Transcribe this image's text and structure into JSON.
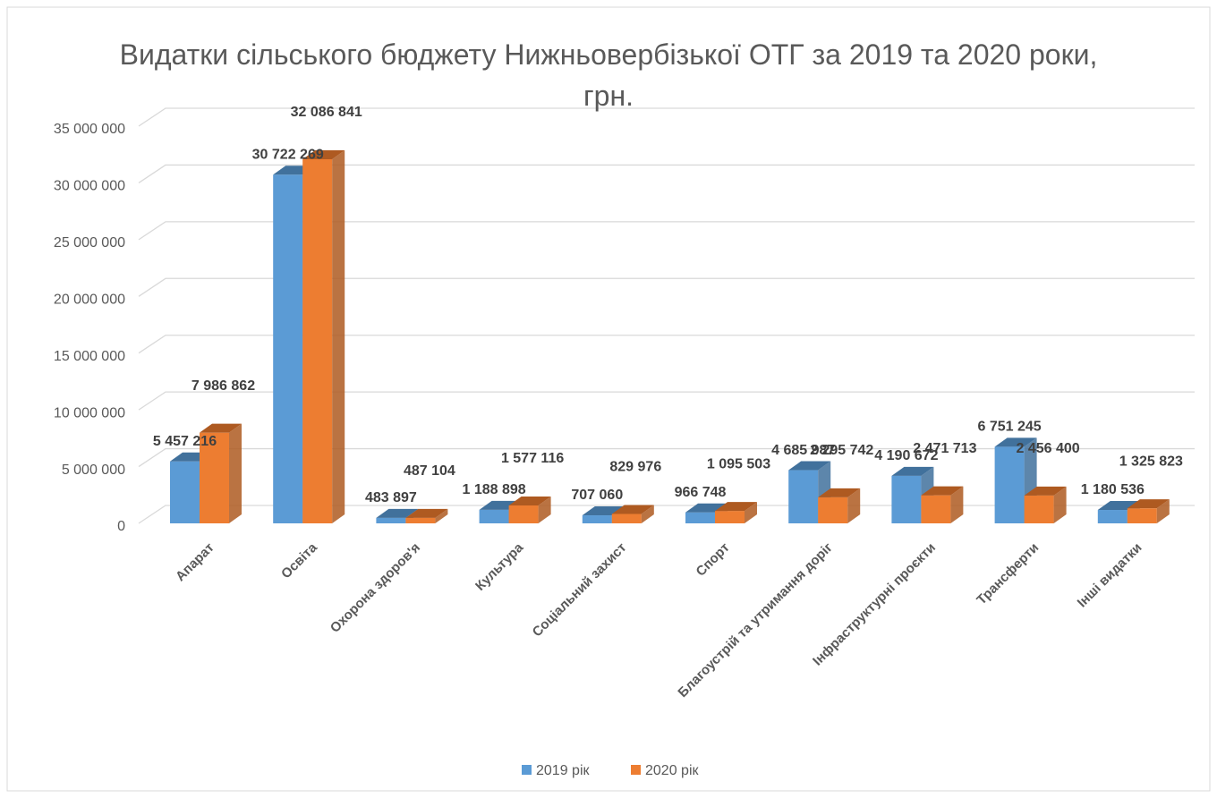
{
  "chart_data": {
    "type": "bar3d",
    "title": "Видатки сільського бюджету Нижньовербізької ОТГ за 2019 та 2020 роки, грн.",
    "categories": [
      "Апарат",
      "Освіта",
      "Охорона здоров'я",
      "Культура",
      "Соціальний захист",
      "Спорт",
      "Благоустрій та утримання доріг",
      "Інфраструктурні проєкти",
      "Трансферти",
      "Інші видатки"
    ],
    "series": [
      {
        "name": "2019 рік",
        "color": "#5b9bd5",
        "side": "#41719c",
        "values": [
          5457216,
          30722269,
          483897,
          1188898,
          707060,
          966748,
          4685987,
          4190672,
          6751245,
          1180536
        ],
        "value_labels": [
          "5 457 216",
          "30 722 269",
          "483 897",
          "1 188 898",
          "707 060",
          "966 748",
          "4 685 987",
          "4 190 672",
          "6 751 245",
          "1 180 536"
        ]
      },
      {
        "name": "2020 рік",
        "color": "#ed7d31",
        "side": "#ae5a21",
        "values": [
          7986862,
          32086841,
          487104,
          1577116,
          829976,
          1095503,
          2295742,
          2471713,
          2456400,
          1325823
        ],
        "value_labels": [
          "7 986 862",
          "32 086 841",
          "487 104",
          "1 577 116",
          "829 976",
          "1 095 503",
          "2 295 742",
          "2 471 713",
          "2 456 400",
          "1 325 823"
        ]
      }
    ],
    "ylim": [
      0,
      35000000
    ],
    "yticks": [
      0,
      {
        "value": 5000000,
        "label": "5 000 000"
      },
      {
        "value": 10000000,
        "label": "10 000 000"
      },
      {
        "value": 15000000,
        "label": "15 000 000"
      },
      {
        "value": 20000000,
        "label": "20 000 000"
      },
      {
        "value": 25000000,
        "label": "25 000 000"
      },
      {
        "value": 30000000,
        "label": "30 000 000"
      },
      {
        "value": 35000000,
        "label": "35 000 000"
      }
    ],
    "grid": true,
    "legend": "bottom"
  }
}
